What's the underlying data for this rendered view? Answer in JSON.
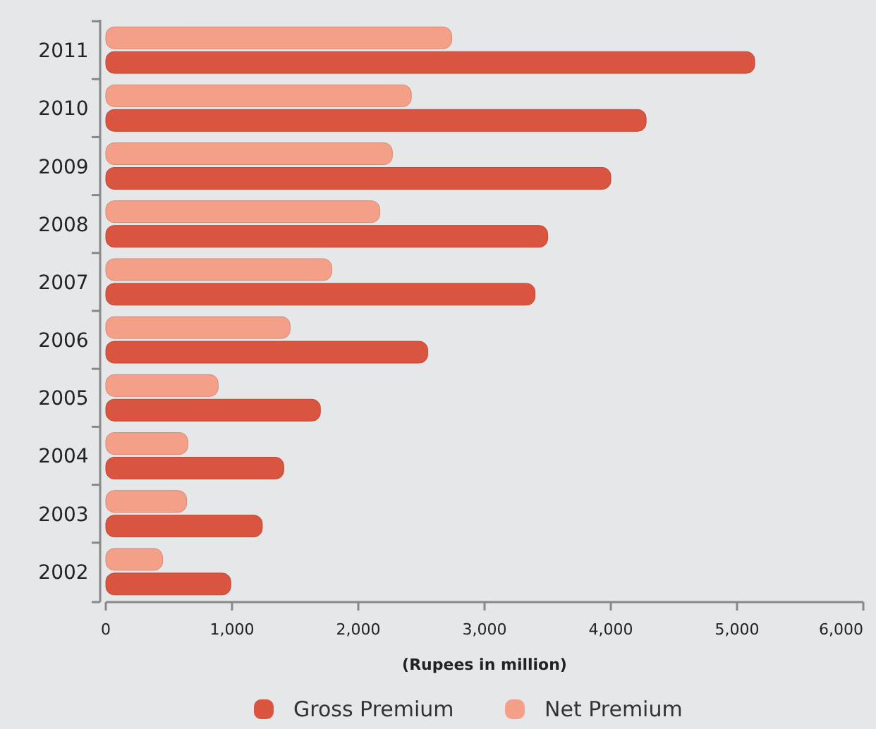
{
  "chart_data": {
    "type": "bar",
    "orientation": "horizontal",
    "xlabel": "(Rupees in million)",
    "categories": [
      "2011",
      "2010",
      "2009",
      "2008",
      "2007",
      "2006",
      "2005",
      "2004",
      "2003",
      "2002"
    ],
    "series": [
      {
        "name": "Gross Premium",
        "color": "#d9553f",
        "values": [
          5140,
          4280,
          4000,
          3500,
          3400,
          2550,
          1700,
          1410,
          1240,
          990
        ]
      },
      {
        "name": "Net Premium",
        "color": "#f4a088",
        "values": [
          2740,
          2420,
          2270,
          2170,
          1790,
          1460,
          890,
          650,
          640,
          450
        ]
      }
    ],
    "xlim": [
      0,
      6000
    ],
    "xticks": [
      {
        "value": 0,
        "label": "0"
      },
      {
        "value": 1000,
        "label": "1,000"
      },
      {
        "value": 2000,
        "label": "2,000"
      },
      {
        "value": 3000,
        "label": "3,000"
      },
      {
        "value": 4000,
        "label": "4,000"
      },
      {
        "value": 5000,
        "label": "5,000"
      },
      {
        "value": 6000,
        "label": "6,000"
      }
    ],
    "legend": "bottom",
    "grid": false
  }
}
